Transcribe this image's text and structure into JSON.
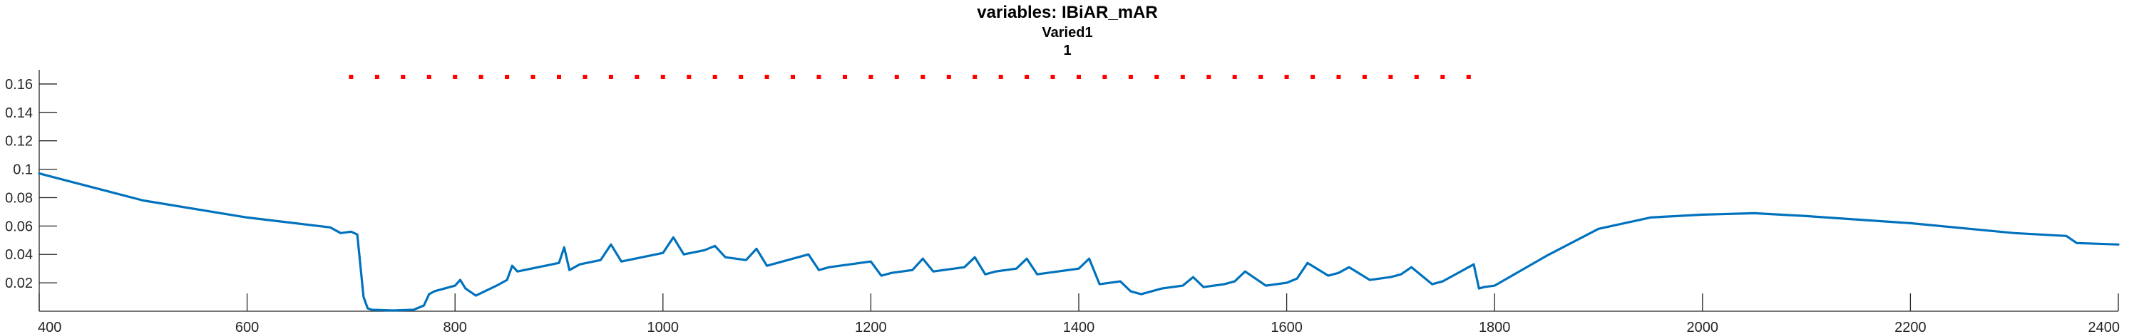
{
  "chart_data": {
    "type": "line",
    "title": [
      "variables: IBiAR_mAR",
      "Varied1",
      "1"
    ],
    "xlabel": "",
    "ylabel": "",
    "xlim": [
      400,
      2400
    ],
    "ylim": [
      0,
      0.17
    ],
    "xticks": [
      400,
      600,
      800,
      1000,
      1200,
      1400,
      1600,
      1800,
      2000,
      2200,
      2400
    ],
    "xtick_labels": [
      "400",
      "600",
      "800",
      "1000",
      "1200",
      "1400",
      "1600",
      "1800",
      "2000",
      "2200",
      "2400"
    ],
    "yticks": [
      0.02,
      0.04,
      0.06,
      0.08,
      0.1,
      0.12,
      0.14,
      0.16
    ],
    "ytick_labels": [
      "0.02",
      "0.04",
      "0.06",
      "0.08",
      "0.1",
      "0.12",
      "0.14",
      "0.16"
    ],
    "grid": false,
    "colors": {
      "line": "#0072BD",
      "markers": "#FF0000",
      "axis": "#262626"
    },
    "series": [
      {
        "style": "line",
        "x": [
          400,
          500,
          600,
          680,
          690,
          700,
          706,
          712,
          716,
          720,
          740,
          760,
          770,
          775,
          780,
          800,
          805,
          810,
          820,
          840,
          850,
          855,
          860,
          880,
          900,
          905,
          910,
          920,
          940,
          950,
          960,
          980,
          1000,
          1010,
          1020,
          1040,
          1050,
          1060,
          1080,
          1090,
          1100,
          1110,
          1120,
          1140,
          1150,
          1160,
          1180,
          1200,
          1210,
          1220,
          1240,
          1250,
          1260,
          1280,
          1290,
          1300,
          1310,
          1320,
          1340,
          1350,
          1360,
          1380,
          1400,
          1410,
          1420,
          1440,
          1450,
          1460,
          1480,
          1500,
          1510,
          1520,
          1540,
          1550,
          1560,
          1580,
          1600,
          1610,
          1620,
          1640,
          1650,
          1660,
          1680,
          1700,
          1710,
          1720,
          1740,
          1750,
          1760,
          1780,
          1785,
          1790,
          1800,
          1850,
          1900,
          1950,
          2000,
          2050,
          2100,
          2200,
          2300,
          2350,
          2360,
          2400
        ],
        "y": [
          0.097,
          0.078,
          0.066,
          0.059,
          0.055,
          0.056,
          0.054,
          0.01,
          0.002,
          0.001,
          0.0005,
          0.001,
          0.004,
          0.012,
          0.014,
          0.018,
          0.022,
          0.016,
          0.011,
          0.018,
          0.022,
          0.032,
          0.028,
          0.031,
          0.034,
          0.045,
          0.029,
          0.033,
          0.036,
          0.047,
          0.035,
          0.038,
          0.041,
          0.052,
          0.04,
          0.043,
          0.046,
          0.038,
          0.036,
          0.044,
          0.032,
          0.034,
          0.036,
          0.04,
          0.029,
          0.031,
          0.033,
          0.035,
          0.025,
          0.027,
          0.029,
          0.037,
          0.028,
          0.03,
          0.031,
          0.038,
          0.026,
          0.028,
          0.03,
          0.037,
          0.026,
          0.028,
          0.03,
          0.037,
          0.019,
          0.021,
          0.014,
          0.012,
          0.016,
          0.018,
          0.024,
          0.017,
          0.019,
          0.021,
          0.028,
          0.018,
          0.02,
          0.023,
          0.034,
          0.025,
          0.027,
          0.031,
          0.022,
          0.024,
          0.026,
          0.031,
          0.019,
          0.021,
          0.025,
          0.033,
          0.016,
          0.017,
          0.018,
          0.039,
          0.058,
          0.066,
          0.068,
          0.069,
          0.067,
          0.062,
          0.055,
          0.053,
          0.048,
          0.047
        ]
      },
      {
        "style": "dots",
        "x": [
          700,
          725,
          750,
          775,
          800,
          825,
          850,
          875,
          900,
          925,
          950,
          975,
          1000,
          1025,
          1050,
          1075,
          1100,
          1125,
          1150,
          1175,
          1200,
          1225,
          1250,
          1275,
          1300,
          1325,
          1350,
          1375,
          1400,
          1425,
          1450,
          1475,
          1500,
          1525,
          1550,
          1575,
          1600,
          1625,
          1650,
          1675,
          1700,
          1725,
          1750,
          1775
        ],
        "y": [
          0.165,
          0.165,
          0.165,
          0.165,
          0.165,
          0.165,
          0.165,
          0.165,
          0.165,
          0.165,
          0.165,
          0.165,
          0.165,
          0.165,
          0.165,
          0.165,
          0.165,
          0.165,
          0.165,
          0.165,
          0.165,
          0.165,
          0.165,
          0.165,
          0.165,
          0.165,
          0.165,
          0.165,
          0.165,
          0.165,
          0.165,
          0.165,
          0.165,
          0.165,
          0.165,
          0.165,
          0.165,
          0.165,
          0.165,
          0.165,
          0.165,
          0.165,
          0.165,
          0.165
        ]
      }
    ]
  }
}
